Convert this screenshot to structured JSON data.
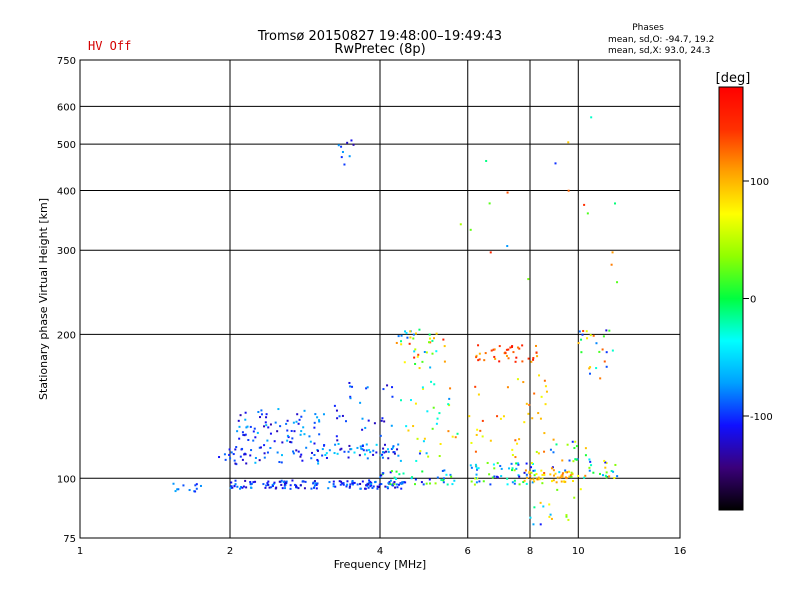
{
  "chart_data": {
    "type": "scatter",
    "title_line1": "Tromsø 20150827 19:48:00–19:49:43",
    "title_line2": "RwPretec (8p)",
    "status_label": "HV Off",
    "xlabel": "Frequency [MHz]",
    "ylabel": "Stationary phase Virtual Height [km]",
    "x_scale": "log2",
    "y_scale": "log",
    "xlim": [
      1,
      16
    ],
    "ylim": [
      75,
      750
    ],
    "x_ticks": [
      {
        "value": 1,
        "label": "1"
      },
      {
        "value": 2,
        "label": "2"
      },
      {
        "value": 4,
        "label": "4"
      },
      {
        "value": 6,
        "label": "6"
      },
      {
        "value": 8,
        "label": "8"
      },
      {
        "value": 10,
        "label": "10"
      },
      {
        "value": 16,
        "label": "16"
      }
    ],
    "y_ticks": [
      {
        "value": 75,
        "label": "75"
      },
      {
        "value": 100,
        "label": "100"
      },
      {
        "value": 200,
        "label": "200"
      },
      {
        "value": 300,
        "label": "300"
      },
      {
        "value": 400,
        "label": "400"
      },
      {
        "value": 500,
        "label": "500"
      },
      {
        "value": 600,
        "label": "600"
      },
      {
        "value": 750,
        "label": "750"
      }
    ],
    "grid": true,
    "phases": {
      "title": "Phases",
      "line_o": "mean, sd,O: -94.7, 19.2",
      "line_x": "mean, sd,X:  93.0, 24.3"
    },
    "colorbar": {
      "unit_label": "[deg]",
      "range": [
        -180,
        180
      ],
      "ticks": [
        {
          "value": 100,
          "label": "100"
        },
        {
          "value": 0,
          "label": "0"
        },
        {
          "value": -100,
          "label": "-100"
        }
      ],
      "colormap": [
        "#000000",
        "#3a007a",
        "#1010ff",
        "#00a0ff",
        "#00ffff",
        "#00ff40",
        "#90ff00",
        "#ffff00",
        "#ffa000",
        "#ff3000",
        "#ff0000"
      ]
    },
    "clusters": [
      {
        "x": [
          1.5,
          1.75
        ],
        "y": [
          93,
          98
        ],
        "phase": [
          -110,
          -60
        ],
        "n": 12
      },
      {
        "x": [
          1.9,
          2.15
        ],
        "y": [
          108,
          118
        ],
        "phase": [
          -120,
          -80
        ],
        "n": 14
      },
      {
        "x": [
          2.0,
          4.5
        ],
        "y": [
          95,
          99
        ],
        "phase": [
          -130,
          -70
        ],
        "n": 160
      },
      {
        "x": [
          2.05,
          3.1
        ],
        "y": [
          107,
          140
        ],
        "phase": [
          -130,
          -60
        ],
        "n": 110
      },
      {
        "x": [
          3.0,
          4.4
        ],
        "y": [
          110,
          118
        ],
        "phase": [
          -130,
          -40
        ],
        "n": 60
      },
      {
        "x": [
          3.2,
          4.3
        ],
        "y": [
          118,
          160
        ],
        "phase": [
          -130,
          -70
        ],
        "n": 30
      },
      {
        "x": [
          3.3,
          3.6
        ],
        "y": [
          450,
          530
        ],
        "phase": [
          -130,
          -70
        ],
        "n": 9
      },
      {
        "x": [
          4.0,
          5.7
        ],
        "y": [
          97,
          104
        ],
        "phase": [
          -120,
          40
        ],
        "n": 40
      },
      {
        "x": [
          4.3,
          5.4
        ],
        "y": [
          170,
          205
        ],
        "phase": [
          -100,
          160
        ],
        "n": 40
      },
      {
        "x": [
          4.4,
          5.8
        ],
        "y": [
          108,
          160
        ],
        "phase": [
          -100,
          120
        ],
        "n": 35
      },
      {
        "x": [
          6.0,
          8.2
        ],
        "y": [
          97,
          108
        ],
        "phase": [
          -120,
          60
        ],
        "n": 60
      },
      {
        "x": [
          6.2,
          8.4
        ],
        "y": [
          175,
          190
        ],
        "phase": [
          100,
          170
        ],
        "n": 40
      },
      {
        "x": [
          6.0,
          9.0
        ],
        "y": [
          110,
          165
        ],
        "phase": [
          60,
          140
        ],
        "n": 40
      },
      {
        "x": [
          7.8,
          10.0
        ],
        "y": [
          98,
          104
        ],
        "phase": [
          70,
          130
        ],
        "n": 45
      },
      {
        "x": [
          8.0,
          10.5
        ],
        "y": [
          80,
          120
        ],
        "phase": [
          -120,
          110
        ],
        "n": 40
      },
      {
        "x": [
          9.5,
          12.0
        ],
        "y": [
          100,
          110
        ],
        "phase": [
          -120,
          120
        ],
        "n": 30
      },
      {
        "x": [
          10.0,
          11.8
        ],
        "y": [
          160,
          205
        ],
        "phase": [
          -120,
          140
        ],
        "n": 25
      },
      {
        "x": [
          5.5,
          12.0
        ],
        "y": [
          230,
          620
        ],
        "phase": [
          -120,
          160
        ],
        "n": 18
      }
    ]
  }
}
